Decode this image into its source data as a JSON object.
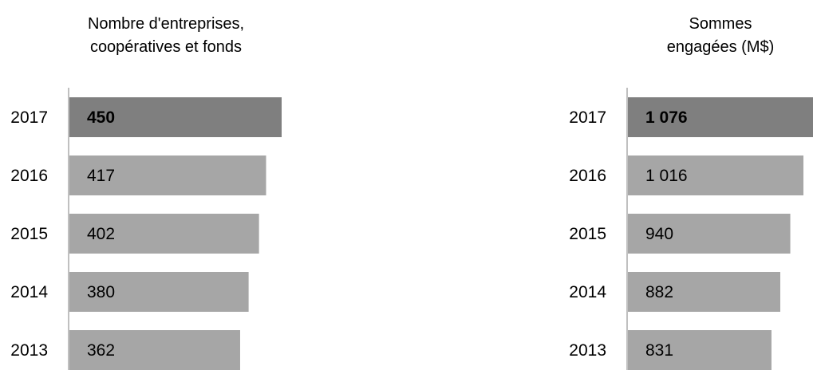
{
  "chart_data": [
    {
      "type": "bar",
      "orientation": "horizontal",
      "title_lines": [
        "Nombre d'entreprises,",
        "coopératives et fonds"
      ],
      "categories": [
        "2017",
        "2016",
        "2015",
        "2014",
        "2013"
      ],
      "values": [
        450,
        417,
        402,
        380,
        362
      ],
      "value_labels": [
        "450",
        "417",
        "402",
        "380",
        "362"
      ],
      "highlight_index": 0,
      "xlim": [
        0,
        450
      ],
      "grid": false,
      "legend": "none"
    },
    {
      "type": "bar",
      "orientation": "horizontal",
      "title_lines": [
        "Sommes",
        "engagées (M$)"
      ],
      "categories": [
        "2017",
        "2016",
        "2015",
        "2014",
        "2013"
      ],
      "values": [
        1076,
        1016,
        940,
        882,
        831
      ],
      "value_labels": [
        "1 076",
        "1 016",
        "940",
        "882",
        "831"
      ],
      "highlight_index": 0,
      "xlim": [
        0,
        1076
      ],
      "grid": false,
      "legend": "none"
    }
  ],
  "colors": {
    "highlight_bar": "#7f7f7f",
    "bar": "#a6a6a6",
    "axis": "#808080"
  }
}
